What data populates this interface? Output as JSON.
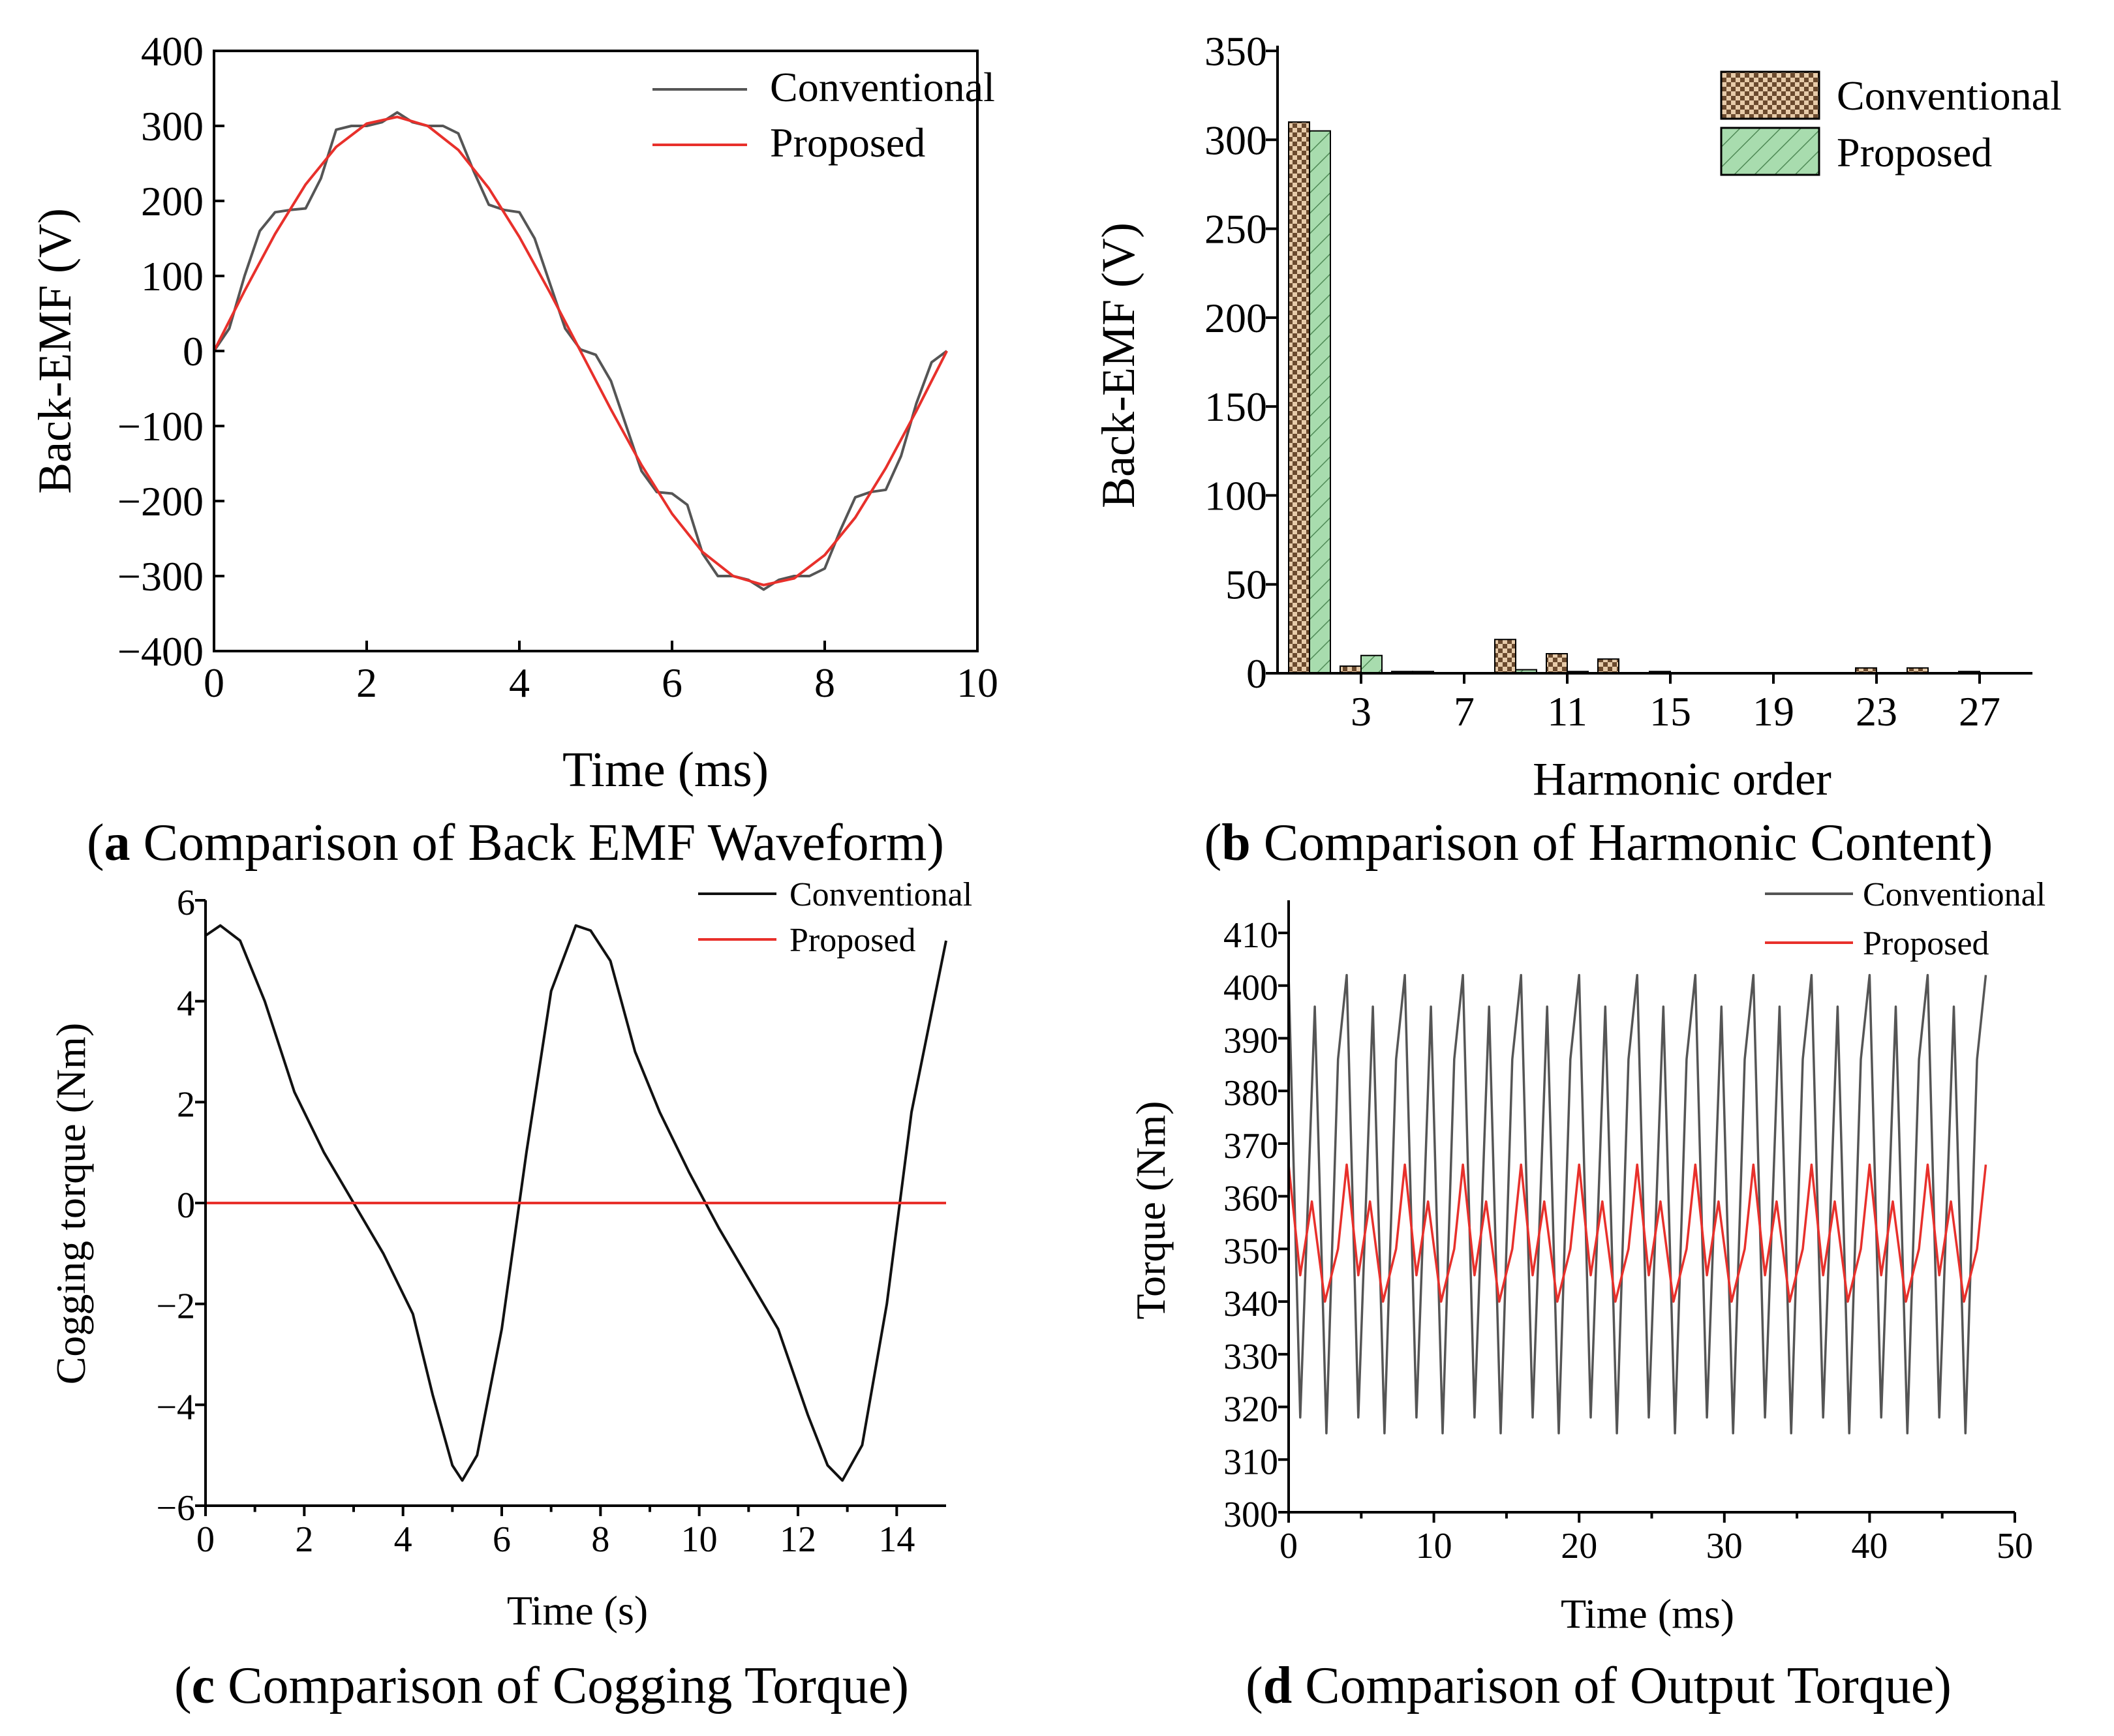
{
  "colors": {
    "conventional_line": "#555555",
    "conventional_line_c": "#111111",
    "proposed_line": "#e8302b",
    "conventional_bar": "#c9a27a",
    "proposed_bar": "#a8dcae"
  },
  "chart_data": [
    {
      "id": "a",
      "type": "line",
      "caption_label": "a",
      "caption_text": " Comparison of Back EMF Waveform",
      "title": "",
      "xlabel": "Time (ms)",
      "ylabel": "Back-EMF (V)",
      "xlim": [
        0,
        10
      ],
      "ylim": [
        -400,
        400
      ],
      "xticks": [
        "0",
        "2",
        "4",
        "6",
        "8",
        "10"
      ],
      "yticks": [
        "400",
        "300",
        "200",
        "100",
        "0",
        "−100",
        "−200",
        "−300",
        "−400"
      ],
      "legend": [
        "Conventional",
        "Proposed"
      ],
      "legend_position": "top-right",
      "series": [
        {
          "name": "Conventional",
          "x": [
            0,
            0.2,
            0.4,
            0.6,
            0.8,
            1.0,
            1.2,
            1.4,
            1.6,
            1.8,
            2.0,
            2.2,
            2.4,
            2.6,
            2.8,
            3.0,
            3.2,
            3.4,
            3.6,
            3.8,
            4.0,
            4.2,
            4.4,
            4.6,
            4.8,
            5.0,
            5.2,
            5.4,
            5.6,
            5.8,
            6.0,
            6.2,
            6.4,
            6.6,
            6.8,
            7.0,
            7.2,
            7.4,
            7.6,
            7.8,
            8.0,
            8.2,
            8.4,
            8.6,
            8.8,
            9.0,
            9.2,
            9.4,
            9.6
          ],
          "values": [
            0,
            30,
            100,
            160,
            185,
            188,
            190,
            230,
            295,
            300,
            300,
            305,
            318,
            305,
            300,
            300,
            290,
            240,
            195,
            188,
            185,
            150,
            90,
            30,
            2,
            -5,
            -40,
            -100,
            -160,
            -188,
            -190,
            -205,
            -270,
            -300,
            -300,
            -305,
            -318,
            -305,
            -300,
            -300,
            -290,
            -240,
            -195,
            -188,
            -185,
            -140,
            -70,
            -15,
            0
          ]
        },
        {
          "name": "Proposed",
          "x": [
            0,
            0.4,
            0.8,
            1.2,
            1.6,
            2.0,
            2.4,
            2.8,
            3.2,
            3.6,
            4.0,
            4.4,
            4.8,
            5.2,
            5.6,
            6.0,
            6.4,
            6.8,
            7.2,
            7.6,
            8.0,
            8.4,
            8.8,
            9.2,
            9.6
          ],
          "values": [
            0,
            80,
            156,
            222,
            272,
            303,
            312,
            300,
            268,
            217,
            152,
            78,
            0,
            -78,
            -152,
            -217,
            -268,
            -300,
            -312,
            -303,
            -272,
            -222,
            -156,
            -80,
            0
          ]
        }
      ]
    },
    {
      "id": "b",
      "type": "bar",
      "caption_label": "b",
      "caption_text": " Comparison of Harmonic Content",
      "title": "",
      "xlabel": "Harmonic order",
      "ylabel": "Back-EMF (V)",
      "ylim": [
        0,
        350
      ],
      "yticks": [
        "350",
        "300",
        "250",
        "200",
        "150",
        "100",
        "50",
        "0"
      ],
      "xtick_labels": [
        "3",
        "7",
        "11",
        "15",
        "19",
        "23",
        "27"
      ],
      "legend": [
        "Conventional",
        "Proposed"
      ],
      "legend_position": "top-right",
      "categories": [
        1,
        3,
        5,
        7,
        9,
        11,
        13,
        15,
        17,
        19,
        21,
        23,
        25,
        27
      ],
      "series": [
        {
          "name": "Conventional",
          "values": [
            310,
            4,
            1,
            0,
            19,
            11,
            8,
            1,
            0,
            0,
            0,
            3,
            3,
            1
          ]
        },
        {
          "name": "Proposed",
          "values": [
            305,
            10,
            1,
            0,
            2,
            1,
            0,
            0,
            0,
            0,
            0,
            0,
            0,
            0
          ]
        }
      ]
    },
    {
      "id": "c",
      "type": "line",
      "caption_label": "c",
      "caption_text": " Comparison of Cogging Torque",
      "title": "",
      "xlabel": "Time (s)",
      "ylabel": "Cogging torque (Nm)",
      "xlim": [
        0,
        15
      ],
      "ylim": [
        -6,
        6
      ],
      "xticks": [
        "0",
        "2",
        "4",
        "6",
        "8",
        "10",
        "12",
        "14"
      ],
      "yticks": [
        "6",
        "4",
        "2",
        "0",
        "−2",
        "−4",
        "−6"
      ],
      "legend": [
        "Conventional",
        "Proposed"
      ],
      "legend_position": "top-right",
      "series": [
        {
          "name": "Conventional",
          "x": [
            0,
            0.3,
            0.7,
            1.2,
            1.8,
            2.4,
            3.0,
            3.6,
            4.2,
            4.6,
            5.0,
            5.2,
            5.5,
            6.0,
            6.5,
            7.0,
            7.5,
            7.8,
            8.2,
            8.7,
            9.2,
            9.8,
            10.4,
            11.0,
            11.6,
            12.2,
            12.6,
            12.9,
            13.3,
            13.8,
            14.3,
            15.0
          ],
          "values": [
            5.3,
            5.5,
            5.2,
            4.0,
            2.2,
            1.0,
            0.0,
            -1.0,
            -2.2,
            -3.8,
            -5.2,
            -5.5,
            -5.0,
            -2.5,
            1.0,
            4.2,
            5.5,
            5.4,
            4.8,
            3.0,
            1.8,
            0.6,
            -0.5,
            -1.5,
            -2.5,
            -4.2,
            -5.2,
            -5.5,
            -4.8,
            -2.0,
            1.8,
            5.2
          ]
        },
        {
          "name": "Proposed",
          "x": [
            0,
            15
          ],
          "values": [
            0,
            0
          ]
        }
      ]
    },
    {
      "id": "d",
      "type": "line",
      "caption_label": "d",
      "caption_text": " Comparison of Output Torque",
      "title": "",
      "xlabel": "Time (ms)",
      "ylabel": "Torque (Nm)",
      "xlim": [
        0,
        50
      ],
      "ylim": [
        300,
        410
      ],
      "xticks": [
        "0",
        "10",
        "20",
        "30",
        "40",
        "50"
      ],
      "yticks": [
        "410",
        "400",
        "390",
        "380",
        "370",
        "360",
        "350",
        "340",
        "330",
        "320",
        "310",
        "300"
      ],
      "legend": [
        "Conventional",
        "Proposed"
      ],
      "legend_position": "top-right",
      "period_ms": 4.0,
      "series": [
        {
          "name": "Conventional",
          "period_x": [
            0,
            0.8,
            1.8,
            2.6,
            3.4,
            4.0
          ],
          "period_values": [
            402,
            318,
            396,
            315,
            386,
            402
          ],
          "x_end": 48
        },
        {
          "name": "Proposed",
          "period_x": [
            0,
            0.8,
            1.6,
            2.5,
            3.4,
            4.0
          ],
          "period_values": [
            366,
            345,
            359,
            340,
            350,
            366
          ],
          "x_end": 48
        }
      ]
    }
  ]
}
